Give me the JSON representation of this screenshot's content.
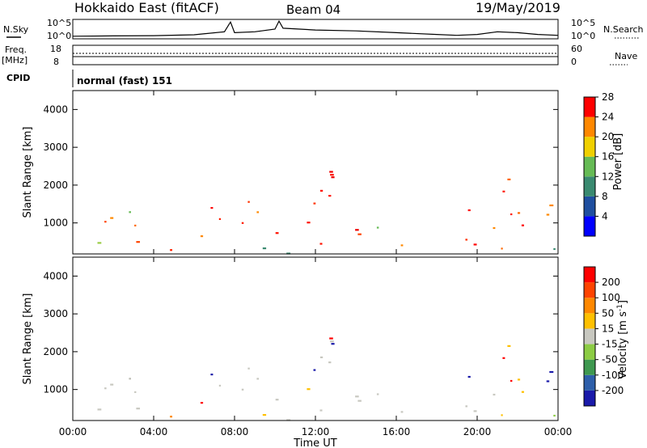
{
  "header": {
    "site": "Hokkaido East (fitACF)",
    "beam": "Beam 04",
    "date": "19/May/2019"
  },
  "noise_panel": {
    "left_label": "N.Sky",
    "right_label": "N.Search",
    "left_ticks": [
      "10^5",
      "10^0"
    ],
    "right_ticks": [
      "10^5",
      "10^0"
    ],
    "series": [
      {
        "x_hours": [
          0,
          2,
          4,
          6,
          7.5,
          7.8,
          8,
          9,
          10,
          10.2,
          10.4,
          12,
          14,
          16,
          18,
          19,
          20,
          21,
          22,
          23,
          24
        ],
        "level": [
          0.1,
          0.12,
          0.13,
          0.18,
          0.35,
          0.9,
          0.3,
          0.35,
          0.5,
          0.95,
          0.55,
          0.45,
          0.4,
          0.3,
          0.2,
          0.15,
          0.2,
          0.35,
          0.3,
          0.2,
          0.15
        ]
      }
    ]
  },
  "freq_panel": {
    "left_label_line1": "Freq.",
    "left_label_line2": "[MHz]",
    "left_ticks": [
      "18",
      "8"
    ],
    "right_label": "Nave",
    "right_ticks": [
      "60",
      "0"
    ],
    "cpid_label": "CPID",
    "cpid_text": "normal (fast) 151"
  },
  "chart_data": [
    {
      "type": "heatmap",
      "parameter": "Power",
      "ylabel": "Slant Range [km]",
      "ylim": [
        180,
        4500
      ],
      "yticks": [
        "1000",
        "2000",
        "3000",
        "4000"
      ],
      "colorbar_label": "Power [dB]",
      "colorbar_ticks": [
        "4",
        "8",
        "12",
        "16",
        "20",
        "24",
        "28"
      ],
      "colors": [
        "#0000ff",
        "#1f4fa0",
        "#3a8a70",
        "#66bb55",
        "#f0d000",
        "#ff8800",
        "#ff0000"
      ]
    },
    {
      "type": "heatmap",
      "parameter": "Velocity",
      "ylabel": "Slant Range [km]",
      "ylim": [
        180,
        4500
      ],
      "yticks": [
        "1000",
        "2000",
        "3000",
        "4000"
      ],
      "colorbar_label": "Velocity [m s^-1]",
      "colorbar_ticks": [
        "200",
        "100",
        "50",
        "15",
        "-15",
        "-50",
        "-100",
        "-200"
      ],
      "colors": [
        "#1a1aaa",
        "#2e5faa",
        "#3f9950",
        "#8ccc44",
        "#c8c8c0",
        "#ffc000",
        "#ff8800",
        "#ff4400",
        "#ff0000"
      ]
    }
  ],
  "x_axis": {
    "label": "Time UT",
    "ticks": [
      "00:00",
      "04:00",
      "08:00",
      "12:00",
      "16:00",
      "20:00",
      "00:00"
    ]
  },
  "echo_regions": [
    {
      "t": [
        0.2,
        6.0
      ],
      "r": [
        450,
        1350
      ],
      "pw": "orange-green",
      "v": "grey"
    },
    {
      "t": [
        6.0,
        9.5
      ],
      "r": [
        600,
        2100
      ],
      "pw": "red-orange",
      "v": "grey"
    },
    {
      "t": [
        9.3,
        12.8
      ],
      "r": [
        1400,
        2450
      ],
      "pw": "red",
      "v": "grey"
    },
    {
      "t": [
        10.0,
        14.0
      ],
      "r": [
        450,
        1300
      ],
      "pw": "red",
      "v": "grey"
    },
    {
      "t": [
        12.5,
        14.3
      ],
      "r": [
        1700,
        2450
      ],
      "pw": "red",
      "v": "grey"
    },
    {
      "t": [
        14.0,
        18.5
      ],
      "r": [
        400,
        1000
      ],
      "pw": "green-orange",
      "v": "grey-orange"
    },
    {
      "t": [
        19.0,
        24.0
      ],
      "r": [
        450,
        2350
      ],
      "pw": "red-orange",
      "v": "grey"
    },
    {
      "t": [
        0.0,
        24.0
      ],
      "r": [
        200,
        400
      ],
      "pw": "orange",
      "v": "green-orange"
    }
  ]
}
